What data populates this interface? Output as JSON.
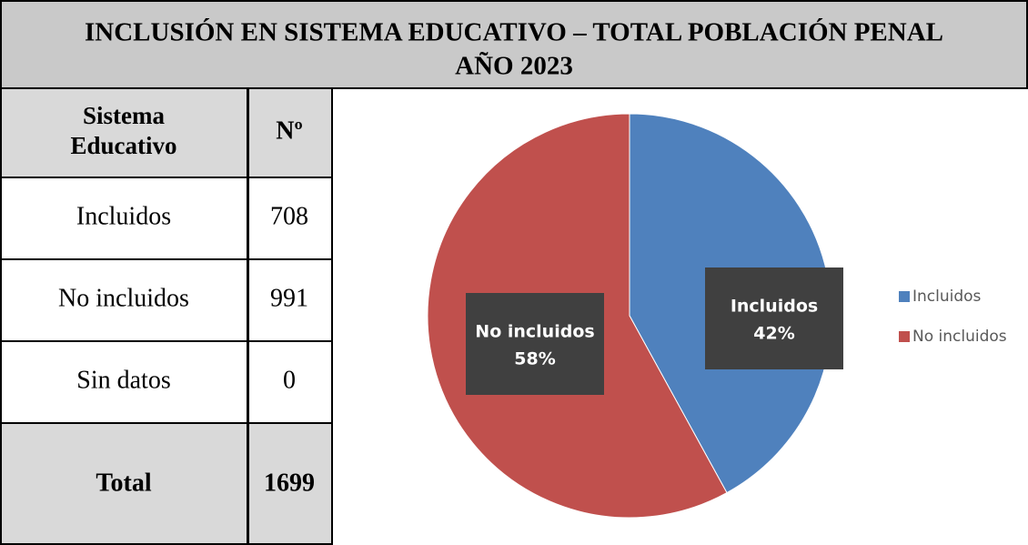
{
  "title": "INCLUSIÓN EN SISTEMA EDUCATIVO – TOTAL POBLACIÓN PENAL",
  "subtitle": "AÑO 2023",
  "table": {
    "header": [
      "Sistema Educativo",
      "Nº"
    ],
    "rows": [
      [
        "Incluidos",
        "708"
      ],
      [
        "No incluidos",
        "991"
      ],
      [
        "Sin datos",
        "0"
      ]
    ],
    "total": [
      "Total",
      "1699"
    ]
  },
  "chart_data": {
    "type": "pie",
    "categories": [
      "Incluidos",
      "No incluidos"
    ],
    "values": [
      42,
      58
    ],
    "value_labels": [
      "42%",
      "58%"
    ],
    "colors": [
      "#4f81bd",
      "#c0504d"
    ],
    "legend": "right"
  }
}
